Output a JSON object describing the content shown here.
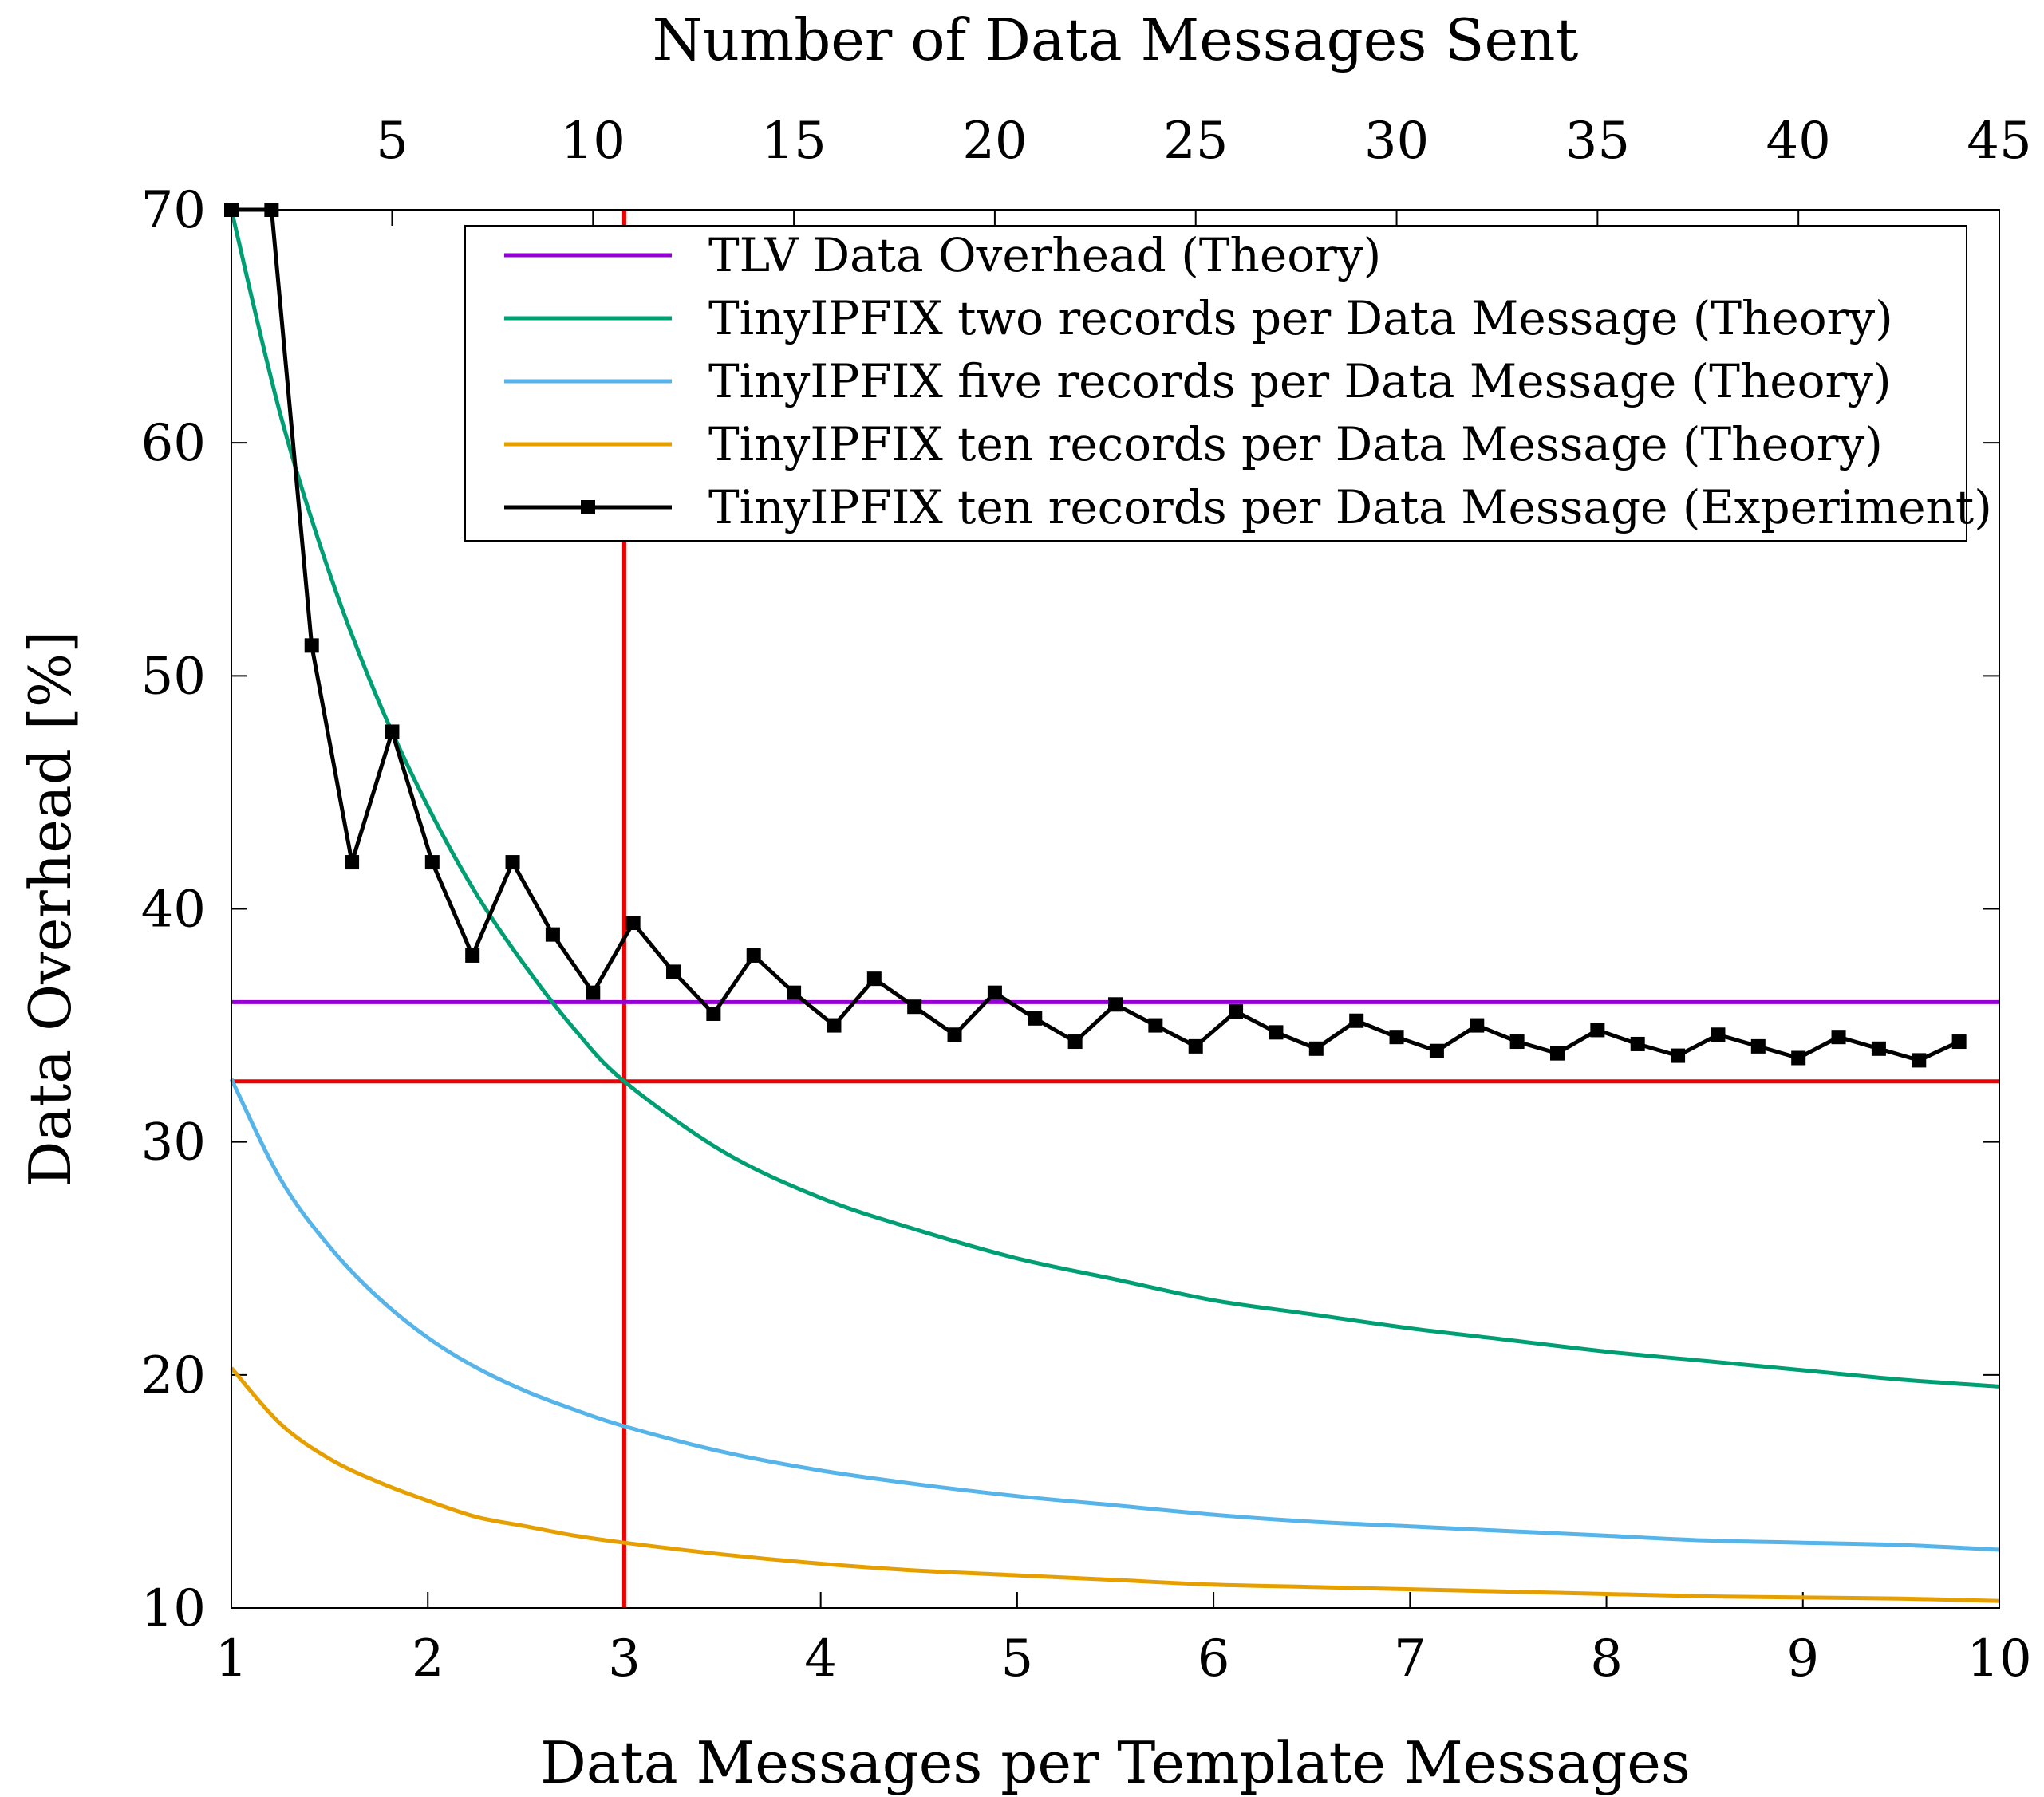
{
  "chart_data": {
    "type": "line",
    "title": "",
    "xlabel": "Data Messages per Template Messages",
    "ylabel": "Data Overhead [%]",
    "x2label": "Number of Data Messages Sent",
    "xlim": [
      1,
      10
    ],
    "ylim": [
      10,
      70
    ],
    "x2lim": [
      1,
      45
    ],
    "x_ticks": [
      "1",
      "2",
      "3",
      "4",
      "5",
      "6",
      "7",
      "8",
      "9",
      "10"
    ],
    "x_tick_values": [
      1,
      2,
      3,
      4,
      5,
      6,
      7,
      8,
      9,
      10
    ],
    "x2_ticks": [
      "5",
      "10",
      "15",
      "20",
      "25",
      "30",
      "35",
      "40",
      "45"
    ],
    "x2_tick_values": [
      5,
      10,
      15,
      20,
      25,
      30,
      35,
      40,
      45
    ],
    "y_ticks": [
      "10",
      "20",
      "30",
      "40",
      "50",
      "60",
      "70"
    ],
    "y_tick_values": [
      10,
      20,
      30,
      40,
      50,
      60,
      70
    ],
    "legend_position": "top-right",
    "series": [
      {
        "name": "TLV Data Overhead (Theory)",
        "color": "#9400d3",
        "axis": "bottom",
        "x": [
          1,
          10
        ],
        "y": [
          36.0,
          36.0
        ]
      },
      {
        "name": "TinyIPFIX two records per Data Message (Theory)",
        "color": "#009e73",
        "axis": "bottom",
        "x": [
          1,
          1.25,
          1.5,
          1.75,
          2,
          2.25,
          2.5,
          2.75,
          3,
          3.5,
          4,
          4.5,
          5,
          5.5,
          6,
          6.5,
          7,
          7.5,
          8,
          8.5,
          9,
          9.5,
          10
        ],
        "y": [
          70.0,
          61.2,
          54.4,
          48.9,
          44.4,
          40.6,
          37.5,
          34.8,
          32.6,
          29.6,
          27.6,
          26.2,
          25.0,
          24.1,
          23.2,
          22.6,
          22.0,
          21.5,
          21.0,
          20.6,
          20.2,
          19.8,
          19.5
        ]
      },
      {
        "name": "TinyIPFIX five records per Data Message (Theory)",
        "color": "#56b4e9",
        "axis": "bottom",
        "x": [
          1,
          1.25,
          1.5,
          1.75,
          2,
          2.25,
          2.5,
          2.75,
          3,
          3.5,
          4,
          4.5,
          5,
          5.5,
          6,
          6.5,
          7,
          7.5,
          8,
          8.5,
          9,
          9.5,
          10
        ],
        "y": [
          32.7,
          28.4,
          25.5,
          23.3,
          21.6,
          20.3,
          19.3,
          18.5,
          17.8,
          16.7,
          15.9,
          15.3,
          14.8,
          14.4,
          14.0,
          13.7,
          13.5,
          13.3,
          13.1,
          12.9,
          12.8,
          12.7,
          12.5
        ]
      },
      {
        "name": "TinyIPFIX ten records per Data Message (Theory)",
        "color": "#e69f00",
        "axis": "bottom",
        "x": [
          1,
          1.25,
          1.5,
          1.75,
          2,
          2.25,
          2.5,
          2.75,
          3,
          3.5,
          4,
          4.5,
          5,
          5.5,
          6,
          6.5,
          7,
          7.5,
          8,
          8.5,
          9,
          9.5,
          10
        ],
        "y": [
          20.3,
          17.9,
          16.4,
          15.4,
          14.6,
          13.9,
          13.5,
          13.1,
          12.8,
          12.3,
          11.9,
          11.6,
          11.4,
          11.2,
          11.0,
          10.9,
          10.8,
          10.7,
          10.6,
          10.5,
          10.45,
          10.4,
          10.3
        ]
      },
      {
        "name": "TinyIPFIX ten records per Data Message (Experiment)",
        "color": "#000000",
        "axis": "top",
        "markers": true,
        "x": [
          1,
          2,
          3,
          4,
          5,
          6,
          7,
          8,
          9,
          10,
          11,
          12,
          13,
          14,
          15,
          16,
          17,
          18,
          19,
          20,
          21,
          22,
          23,
          24,
          25,
          26,
          27,
          28,
          29,
          30,
          31,
          32,
          33,
          34,
          35,
          36,
          37,
          38,
          39,
          40,
          41,
          42,
          43,
          44
        ],
        "y": [
          70.0,
          70.0,
          51.3,
          42.0,
          47.6,
          42.0,
          38.0,
          42.0,
          38.9,
          36.4,
          39.4,
          37.3,
          35.5,
          38.0,
          36.4,
          35.0,
          37.0,
          35.8,
          34.6,
          36.4,
          35.3,
          34.3,
          35.9,
          35.0,
          34.1,
          35.6,
          34.7,
          34.0,
          35.2,
          34.5,
          33.9,
          35.0,
          34.3,
          33.8,
          34.8,
          34.2,
          33.7,
          34.6,
          34.1,
          33.6,
          34.5,
          34.0,
          33.5,
          34.3
        ]
      }
    ],
    "reference_lines": {
      "color": "#ee0000",
      "vertical_x": 3,
      "horizontal_y": 32.6
    }
  }
}
